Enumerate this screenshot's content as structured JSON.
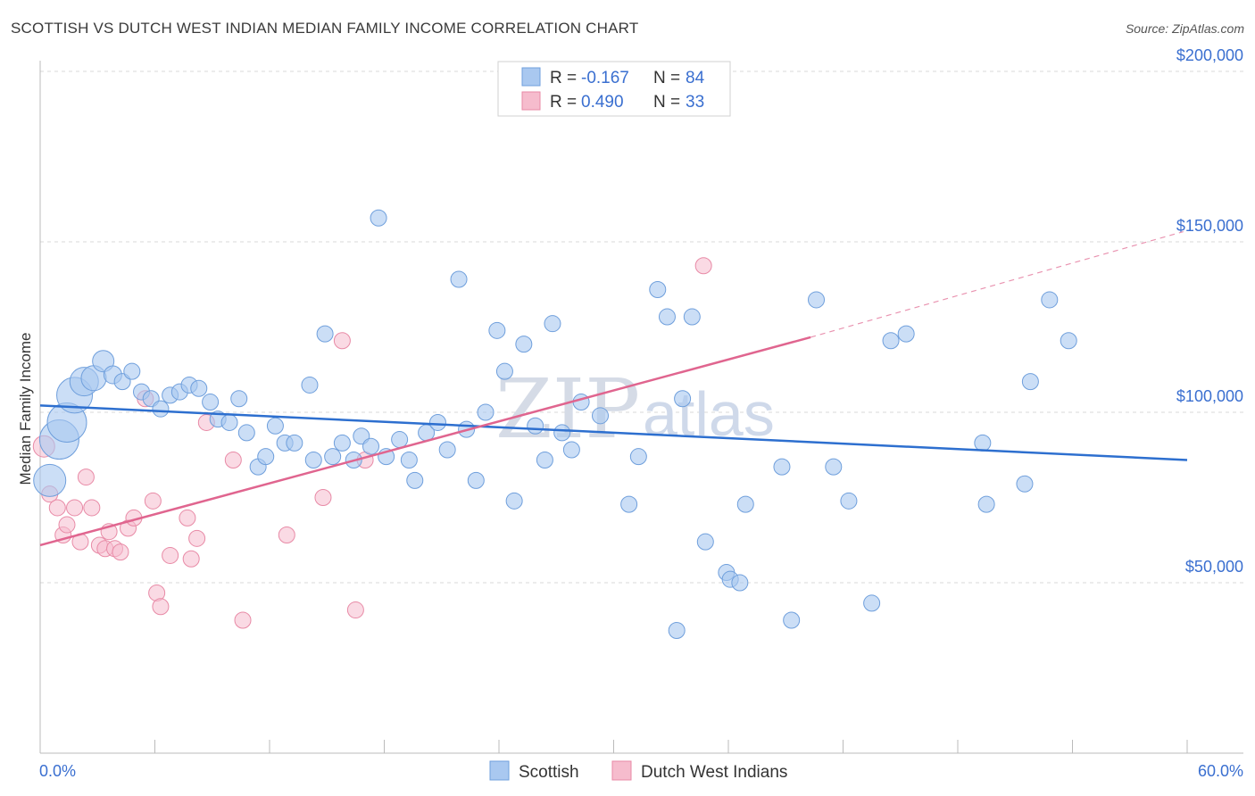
{
  "header": {
    "title": "SCOTTISH VS DUTCH WEST INDIAN MEDIAN FAMILY INCOME CORRELATION CHART",
    "source": "Source: ZipAtlas.com"
  },
  "watermark": {
    "zip": "ZIP",
    "atlas": "atlas"
  },
  "legend_box": {
    "rows": [
      {
        "r_label": "R =",
        "r_value": "-0.167",
        "n_label": "N =",
        "n_value": "84"
      },
      {
        "r_label": "R =",
        "r_value": "0.490",
        "n_label": "N =",
        "n_value": "33"
      }
    ]
  },
  "bottom_legend": {
    "scottish": "Scottish",
    "dutch": "Dutch West Indians"
  },
  "colors": {
    "blue_fill": "#a9c8f0",
    "blue_stroke": "#6f9fdc",
    "blue_line": "#2d6fcf",
    "pink_fill": "#f6bccd",
    "pink_stroke": "#e88aa6",
    "pink_line": "#e0658f",
    "grid": "#d8d8d8",
    "axis_label": "#3a6fd0"
  },
  "chart_data": {
    "type": "scatter",
    "title": "SCOTTISH VS DUTCH WEST INDIAN MEDIAN FAMILY INCOME CORRELATION CHART",
    "xlabel": "",
    "ylabel": "Median Family Income",
    "xlim": [
      0,
      60
    ],
    "ylim": [
      0,
      212000
    ],
    "x_tick_labels": [
      "0.0%",
      "60.0%"
    ],
    "y_ticks": [
      50000,
      100000,
      150000,
      200000
    ],
    "y_tick_labels": [
      "$50,000",
      "$100,000",
      "$150,000",
      "$200,000"
    ],
    "series": [
      {
        "name": "Scottish",
        "r": -0.167,
        "n": 84,
        "trend": {
          "x0": 0,
          "y0": 102000,
          "x1": 60,
          "y1": 86000
        },
        "points": [
          [
            0.5,
            80000,
            18
          ],
          [
            1.0,
            92000,
            22
          ],
          [
            1.4,
            97000,
            22
          ],
          [
            1.8,
            105000,
            20
          ],
          [
            2.3,
            109000,
            16
          ],
          [
            2.8,
            110000,
            14
          ],
          [
            3.3,
            115000,
            12
          ],
          [
            3.8,
            111000,
            10
          ],
          [
            4.3,
            109000,
            9
          ],
          [
            4.8,
            112000,
            9
          ],
          [
            5.3,
            106000,
            9
          ],
          [
            5.8,
            104000,
            9
          ],
          [
            6.3,
            101000,
            9
          ],
          [
            6.8,
            105000,
            9
          ],
          [
            7.3,
            106000,
            9
          ],
          [
            7.8,
            108000,
            9
          ],
          [
            8.3,
            107000,
            9
          ],
          [
            8.9,
            103000,
            9
          ],
          [
            9.3,
            98000,
            9
          ],
          [
            9.9,
            97000,
            9
          ],
          [
            10.4,
            104000,
            9
          ],
          [
            10.8,
            94000,
            9
          ],
          [
            11.4,
            84000,
            9
          ],
          [
            11.8,
            87000,
            9
          ],
          [
            12.3,
            96000,
            9
          ],
          [
            12.8,
            91000,
            9
          ],
          [
            13.3,
            91000,
            9
          ],
          [
            14.1,
            108000,
            9
          ],
          [
            14.3,
            86000,
            9
          ],
          [
            14.9,
            123000,
            9
          ],
          [
            15.3,
            87000,
            9
          ],
          [
            15.8,
            91000,
            9
          ],
          [
            16.4,
            86000,
            9
          ],
          [
            16.8,
            93000,
            9
          ],
          [
            17.3,
            90000,
            9
          ],
          [
            17.7,
            157000,
            9
          ],
          [
            18.1,
            87000,
            9
          ],
          [
            18.8,
            92000,
            9
          ],
          [
            19.3,
            86000,
            9
          ],
          [
            19.6,
            80000,
            9
          ],
          [
            20.2,
            94000,
            9
          ],
          [
            20.8,
            97000,
            9
          ],
          [
            21.3,
            89000,
            9
          ],
          [
            21.9,
            139000,
            9
          ],
          [
            22.3,
            95000,
            9
          ],
          [
            22.8,
            80000,
            9
          ],
          [
            23.3,
            100000,
            9
          ],
          [
            23.9,
            124000,
            9
          ],
          [
            24.3,
            112000,
            9
          ],
          [
            24.8,
            74000,
            9
          ],
          [
            25.3,
            120000,
            9
          ],
          [
            25.9,
            96000,
            9
          ],
          [
            26.4,
            86000,
            9
          ],
          [
            26.8,
            126000,
            9
          ],
          [
            27.3,
            94000,
            9
          ],
          [
            27.8,
            89000,
            9
          ],
          [
            28.3,
            103000,
            9
          ],
          [
            29.3,
            99000,
            9
          ],
          [
            30.8,
            73000,
            9
          ],
          [
            31.3,
            87000,
            9
          ],
          [
            32.3,
            136000,
            9
          ],
          [
            32.8,
            128000,
            9
          ],
          [
            33.3,
            36000,
            9
          ],
          [
            33.6,
            104000,
            9
          ],
          [
            34.1,
            128000,
            9
          ],
          [
            34.8,
            62000,
            9
          ],
          [
            35.9,
            53000,
            9
          ],
          [
            36.1,
            51000,
            9
          ],
          [
            36.6,
            50000,
            9
          ],
          [
            36.9,
            73000,
            9
          ],
          [
            38.8,
            84000,
            9
          ],
          [
            39.3,
            39000,
            9
          ],
          [
            40.6,
            133000,
            9
          ],
          [
            41.5,
            84000,
            9
          ],
          [
            42.3,
            74000,
            9
          ],
          [
            43.5,
            44000,
            9
          ],
          [
            44.5,
            121000,
            9
          ],
          [
            45.3,
            123000,
            9
          ],
          [
            49.3,
            91000,
            9
          ],
          [
            49.5,
            73000,
            9
          ],
          [
            51.5,
            79000,
            9
          ],
          [
            51.8,
            109000,
            9
          ],
          [
            52.8,
            133000,
            9
          ],
          [
            53.8,
            121000,
            9
          ]
        ]
      },
      {
        "name": "Dutch West Indians",
        "r": 0.49,
        "n": 33,
        "trend": {
          "x0": 0,
          "y0": 61000,
          "x1": 40.3,
          "y1": 122000,
          "dash_x1": 59.8,
          "dash_y1": 153000
        },
        "points": [
          [
            0.2,
            90000,
            12
          ],
          [
            0.5,
            76000,
            9
          ],
          [
            0.9,
            72000,
            9
          ],
          [
            1.2,
            64000,
            9
          ],
          [
            1.4,
            67000,
            9
          ],
          [
            1.8,
            72000,
            9
          ],
          [
            2.1,
            62000,
            9
          ],
          [
            2.4,
            81000,
            9
          ],
          [
            2.7,
            72000,
            9
          ],
          [
            3.1,
            61000,
            9
          ],
          [
            3.4,
            60000,
            9
          ],
          [
            3.6,
            65000,
            9
          ],
          [
            3.9,
            60000,
            9
          ],
          [
            4.2,
            59000,
            9
          ],
          [
            4.6,
            66000,
            9
          ],
          [
            4.9,
            69000,
            9
          ],
          [
            5.5,
            104000,
            9
          ],
          [
            5.9,
            74000,
            9
          ],
          [
            6.1,
            47000,
            9
          ],
          [
            6.3,
            43000,
            9
          ],
          [
            6.8,
            58000,
            9
          ],
          [
            7.7,
            69000,
            9
          ],
          [
            7.9,
            57000,
            9
          ],
          [
            8.2,
            63000,
            9
          ],
          [
            8.7,
            97000,
            9
          ],
          [
            10.1,
            86000,
            9
          ],
          [
            10.6,
            39000,
            9
          ],
          [
            12.9,
            64000,
            9
          ],
          [
            14.8,
            75000,
            9
          ],
          [
            15.8,
            121000,
            9
          ],
          [
            16.5,
            42000,
            9
          ],
          [
            17.0,
            86000,
            9
          ],
          [
            34.7,
            143000,
            9
          ]
        ]
      }
    ]
  }
}
